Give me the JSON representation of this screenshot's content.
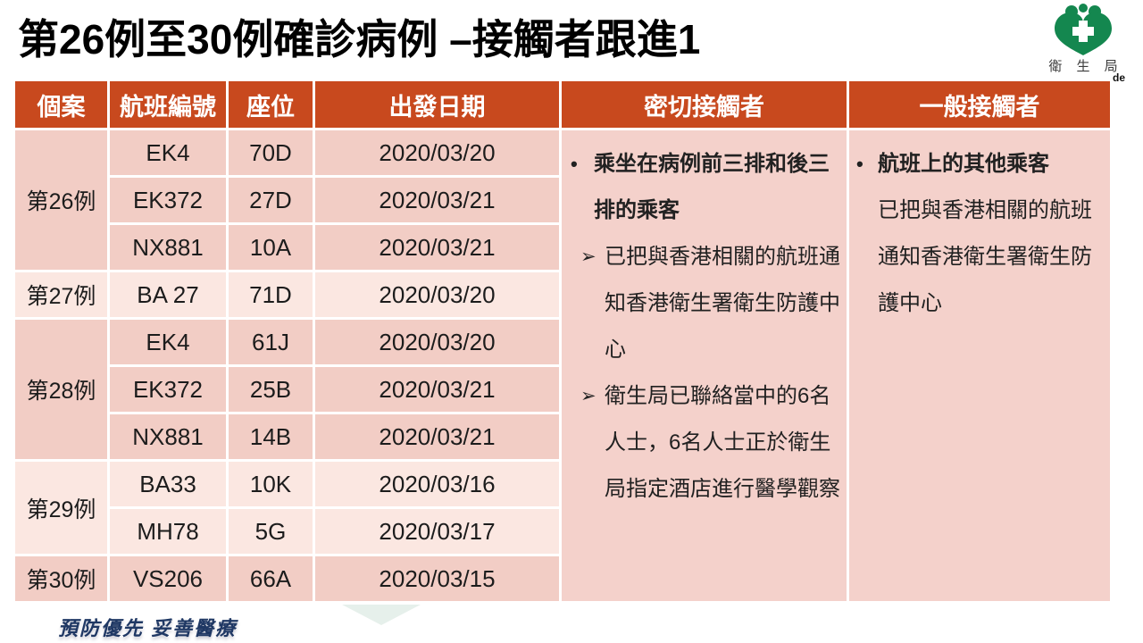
{
  "title": "第26例至30例確診病例 –接觸者跟進1",
  "logo": {
    "label": "衛 生 局",
    "partial_subtitle": "de"
  },
  "footer": {
    "motto": "預防優先 妥善醫療"
  },
  "markers": {
    "bullet": "•",
    "arrow": "➢"
  },
  "colors": {
    "header_bg": "#c8491e",
    "row_dark": "#f2cdc5",
    "row_light": "#fbe7e1",
    "contacts_bg": "#f4d1cb",
    "motto": "#1f3864",
    "logo_green": "#14874f"
  },
  "table": {
    "headers": [
      "個案",
      "航班編號",
      "座位",
      "出發日期",
      "密切接觸者",
      "一般接觸者"
    ],
    "case_groups": [
      {
        "case": "第26例",
        "shade": "dark",
        "flights": [
          {
            "flight": "EK4",
            "seat": "70D",
            "date": "2020/03/20"
          },
          {
            "flight": "EK372",
            "seat": "27D",
            "date": "2020/03/21"
          },
          {
            "flight": "NX881",
            "seat": "10A",
            "date": "2020/03/21"
          }
        ]
      },
      {
        "case": "第27例",
        "shade": "light",
        "flights": [
          {
            "flight": "BA 27",
            "seat": "71D",
            "date": "2020/03/20"
          }
        ]
      },
      {
        "case": "第28例",
        "shade": "dark",
        "flights": [
          {
            "flight": "EK4",
            "seat": "61J",
            "date": "2020/03/20"
          },
          {
            "flight": "EK372",
            "seat": "25B",
            "date": "2020/03/21"
          },
          {
            "flight": "NX881",
            "seat": "14B",
            "date": "2020/03/21"
          }
        ]
      },
      {
        "case": "第29例",
        "shade": "light",
        "flights": [
          {
            "flight": "BA33",
            "seat": "10K",
            "date": "2020/03/16"
          },
          {
            "flight": "MH78",
            "seat": "5G",
            "date": "2020/03/17"
          }
        ]
      },
      {
        "case": "第30例",
        "shade": "dark",
        "flights": [
          {
            "flight": "VS206",
            "seat": "66A",
            "date": "2020/03/15"
          }
        ]
      }
    ],
    "close_contacts": [
      {
        "marker": "bullet",
        "bold": true,
        "text": "乘坐在病例前三排和後三排的乘客"
      },
      {
        "marker": "arrow",
        "bold": false,
        "text": "已把與香港相關的航班通知香港衛生署衛生防護中心"
      },
      {
        "marker": "arrow",
        "bold": false,
        "text": "衛生局已聯絡當中的6名人士，6名人士正於衛生局指定酒店進行醫學觀察"
      }
    ],
    "general_contacts": [
      {
        "marker": "bullet",
        "bold": true,
        "text": "航班上的其他乘客"
      },
      {
        "marker": "none",
        "bold": false,
        "text": "已把與香港相關的航班通知香港衛生署衛生防護中心"
      }
    ]
  }
}
